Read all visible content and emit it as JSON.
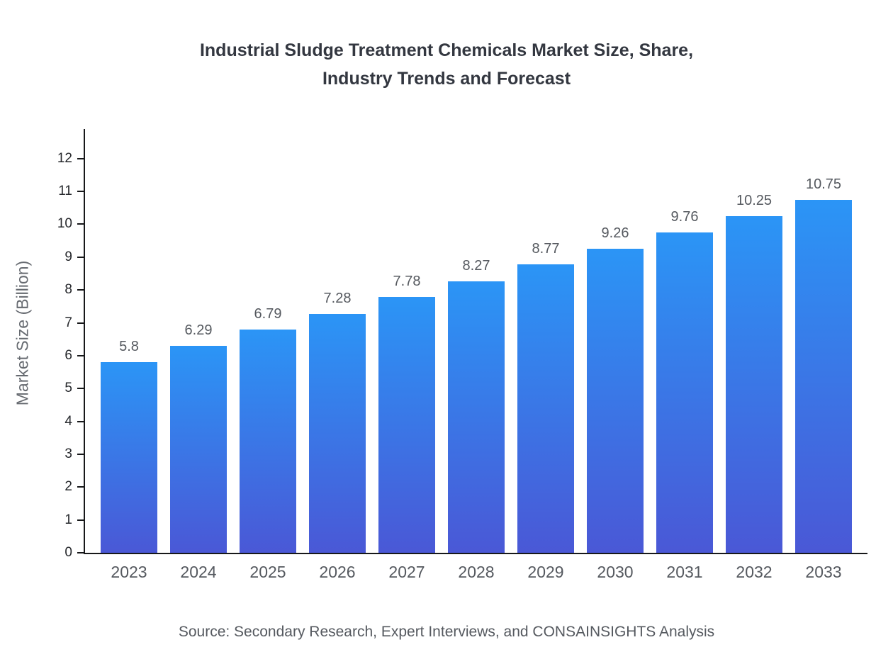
{
  "page": {
    "title_lines": [
      "Industrial Sludge Treatment Chemicals Market Size, Share,",
      "Industry Trends and Forecast"
    ],
    "source": "Source: Secondary Research, Expert Interviews, and CONSAINSIGHTS Analysis"
  },
  "chart_data": {
    "type": "bar",
    "title": "Industrial Sludge Treatment Chemicals Market Size, Share, Industry Trends and Forecast",
    "categories": [
      "2023",
      "2024",
      "2025",
      "2026",
      "2027",
      "2028",
      "2029",
      "2030",
      "2031",
      "2032",
      "2033"
    ],
    "values": [
      5.8,
      6.29,
      6.79,
      7.28,
      7.78,
      8.27,
      8.77,
      9.26,
      9.76,
      10.25,
      10.75
    ],
    "xlabel": "",
    "ylabel": "Market Size (Billion)",
    "ylim": [
      0,
      12.9
    ],
    "yticks": [
      0,
      1,
      2,
      3,
      4,
      5,
      6,
      7,
      8,
      9,
      10,
      11,
      12
    ],
    "grid": false,
    "legend": "none",
    "bar_gradient_top": "#2b95f6",
    "bar_gradient_bottom": "#4a58d6",
    "value_label_color": "#55595f",
    "axis_color": "#17181a"
  }
}
